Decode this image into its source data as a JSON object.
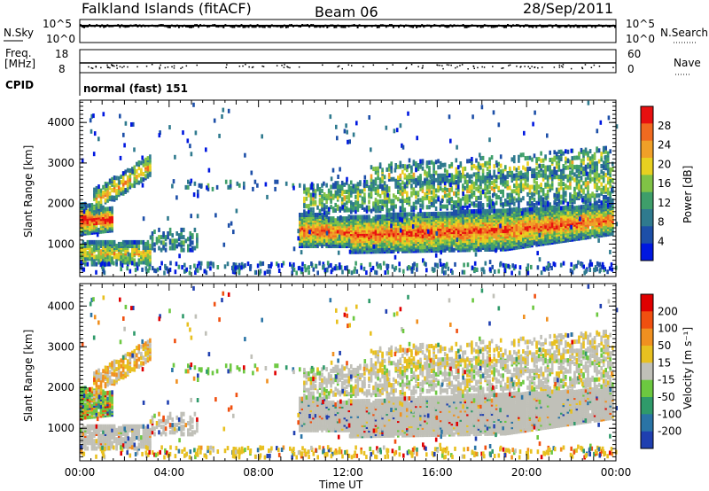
{
  "header": {
    "title": "Falkland Islands (fitACF)",
    "beam": "Beam 06",
    "date": "28/Sep/2011"
  },
  "strips": {
    "nsky_label": "N.Sky",
    "nsky_ticks": [
      "10^5",
      "10^0"
    ],
    "nsearch_label": "N.Search",
    "nsearch_ticks": [
      "10^5",
      "10^0"
    ],
    "freq_label_1": "Freq.",
    "freq_label_2": "[MHz]",
    "freq_ticks": [
      "18",
      "8"
    ],
    "nave_label": "Nave",
    "nave_ticks": [
      "60",
      "0"
    ],
    "cpid_label": "CPID",
    "cpid_value": "normal (fast) 151"
  },
  "colors": {
    "power_scale": [
      "#0018e0",
      "#1d4fa8",
      "#2f7a8e",
      "#3e9e6a",
      "#80c246",
      "#e8d020",
      "#f0a028",
      "#f06a20",
      "#e81010"
    ],
    "velocity_scale": [
      "#1f3fb0",
      "#2a74a6",
      "#2f9a6a",
      "#6cc840",
      "#c0c0b8",
      "#e8c020",
      "#f09020",
      "#f05010",
      "#e00000"
    ],
    "ground_scatter": "#c0c0b8"
  },
  "chart_data": [
    {
      "type": "heatmap",
      "name": "power",
      "ylabel": "Slant Range [km]",
      "xlabel": "",
      "x_ticks": [
        "00:00",
        "04:00",
        "08:00",
        "12:00",
        "16:00",
        "20:00",
        "00:00"
      ],
      "y_ticks": [
        "1000",
        "2000",
        "3000",
        "4000"
      ],
      "ylim": [
        200,
        4550
      ],
      "xlim_hours": [
        0,
        24
      ],
      "colorbar_label": "Power [dB]",
      "colorbar_ticks": [
        "4",
        "8",
        "12",
        "16",
        "20",
        "24",
        "28"
      ],
      "clim": [
        0,
        32
      ]
    },
    {
      "type": "heatmap",
      "name": "velocity",
      "ylabel": "Slant Range [km]",
      "xlabel": "Time UT",
      "x_ticks": [
        "00:00",
        "04:00",
        "08:00",
        "12:00",
        "16:00",
        "20:00",
        "00:00"
      ],
      "y_ticks": [
        "1000",
        "2000",
        "3000",
        "4000"
      ],
      "ylim": [
        200,
        4550
      ],
      "xlim_hours": [
        0,
        24
      ],
      "colorbar_label": "Velocity [m s⁻¹]",
      "colorbar_ticks": [
        "200",
        "100",
        "50",
        "15",
        "-15",
        "-50",
        "-100",
        "-200"
      ]
    }
  ]
}
